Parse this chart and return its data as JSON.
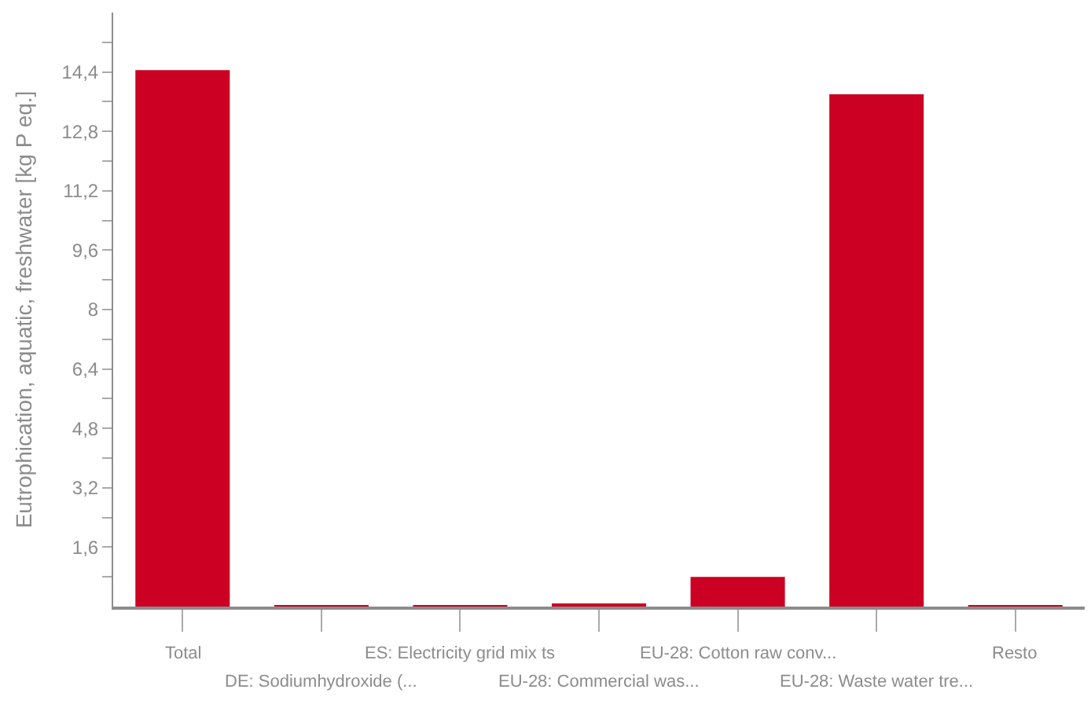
{
  "chart_data": {
    "type": "bar",
    "ylabel": "Eutrophication, aquatic, freshwater [kg P eq.]",
    "categories": [
      "Total",
      "DE: Sodiumhydroxide (...",
      "ES: Electricity grid mix ts",
      "EU-28: Commercial was...",
      "EU-28: Cotton raw conv...",
      "EU-28: Waste water tre...",
      "Resto"
    ],
    "values": [
      14.45,
      0.02,
      0.02,
      0.06,
      0.8,
      13.8,
      0.02
    ],
    "color": "#cc0022",
    "ylim": [
      0,
      16
    ],
    "yticks": [
      {
        "value": 0.8,
        "label": null
      },
      {
        "value": 1.6,
        "label": "1,6"
      },
      {
        "value": 2.4,
        "label": null
      },
      {
        "value": 3.2,
        "label": "3,2"
      },
      {
        "value": 4.0,
        "label": null
      },
      {
        "value": 4.8,
        "label": "4,8"
      },
      {
        "value": 5.6,
        "label": null
      },
      {
        "value": 6.4,
        "label": "6,4"
      },
      {
        "value": 7.2,
        "label": null
      },
      {
        "value": 8,
        "label": "8"
      },
      {
        "value": 8.8,
        "label": null
      },
      {
        "value": 9.6,
        "label": "9,6"
      },
      {
        "value": 10.4,
        "label": null
      },
      {
        "value": 11.2,
        "label": "11,2"
      },
      {
        "value": 12.0,
        "label": null
      },
      {
        "value": 12.8,
        "label": "12,8"
      },
      {
        "value": 13.6,
        "label": null
      },
      {
        "value": 14.4,
        "label": "14,4"
      },
      {
        "value": 15.2,
        "label": null
      }
    ],
    "legend": false
  }
}
